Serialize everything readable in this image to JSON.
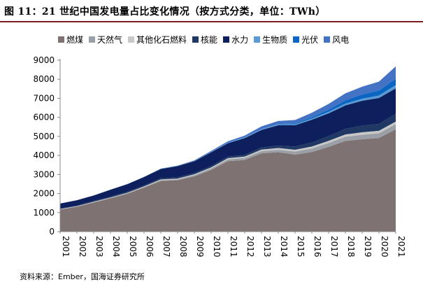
{
  "figure_title": "图 11：21 世纪中国发电量占比变化情况（按方式分类，单位：TWh）",
  "source_note": "资料来源：Ember，国海证券研究所",
  "chart_data": {
    "type": "area",
    "stacked": true,
    "title": "图 11：21 世纪中国发电量占比变化情况（按方式分类，单位：TWh）",
    "xlabel": "",
    "ylabel": "",
    "ylim": [
      0,
      9000
    ],
    "yticks": [
      0,
      1000,
      2000,
      3000,
      4000,
      5000,
      6000,
      7000,
      8000,
      9000
    ],
    "grid": false,
    "legend_position": "top",
    "x": [
      "2001",
      "2002",
      "2003",
      "2004",
      "2005",
      "2006",
      "2007",
      "2008",
      "2009",
      "2010",
      "2011",
      "2012",
      "2013",
      "2014",
      "2015",
      "2016",
      "2017",
      "2018",
      "2019",
      "2020",
      "2021"
    ],
    "series": [
      {
        "name": "燃煤",
        "color": "#7f7272",
        "values": [
          1160,
          1310,
          1530,
          1750,
          1990,
          2310,
          2660,
          2700,
          2900,
          3240,
          3700,
          3760,
          4110,
          4170,
          4040,
          4180,
          4450,
          4760,
          4850,
          4920,
          5370
        ]
      },
      {
        "name": "天然气",
        "color": "#9aa0a6",
        "values": [
          10,
          12,
          14,
          18,
          20,
          28,
          40,
          40,
          60,
          75,
          95,
          110,
          115,
          130,
          160,
          180,
          200,
          220,
          235,
          245,
          275
        ]
      },
      {
        "name": "其他化石燃料",
        "color": "#c8c8c8",
        "values": [
          20,
          20,
          25,
          25,
          30,
          35,
          40,
          45,
          50,
          55,
          60,
          70,
          80,
          90,
          100,
          110,
          115,
          120,
          130,
          130,
          130
        ]
      },
      {
        "name": "核能",
        "color": "#1f3864",
        "values": [
          17,
          25,
          43,
          50,
          53,
          55,
          62,
          68,
          70,
          74,
          87,
          97,
          110,
          130,
          170,
          210,
          250,
          295,
          350,
          366,
          408
        ]
      },
      {
        "name": "水力",
        "color": "#0d1f5c",
        "values": [
          265,
          280,
          285,
          355,
          397,
          436,
          486,
          585,
          616,
          722,
          699,
          872,
          920,
          1064,
          1115,
          1193,
          1194,
          1232,
          1302,
          1355,
          1340
        ]
      },
      {
        "name": "生物质",
        "color": "#5b9bd5",
        "values": [
          0,
          0,
          2,
          2,
          5,
          10,
          15,
          15,
          20,
          25,
          30,
          35,
          40,
          45,
          50,
          60,
          80,
          90,
          110,
          130,
          170
        ]
      },
      {
        "name": "光伏",
        "color": "#0a66c2",
        "values": [
          0,
          0,
          0,
          0,
          0,
          0,
          0,
          0,
          0,
          1,
          3,
          4,
          8,
          24,
          39,
          67,
          118,
          177,
          224,
          261,
          327
        ]
      },
      {
        "name": "风电",
        "color": "#4472c4",
        "values": [
          0,
          0,
          2,
          2,
          2,
          4,
          6,
          14,
          27,
          45,
          70,
          96,
          141,
          156,
          186,
          241,
          295,
          366,
          406,
          466,
          656
        ]
      }
    ]
  }
}
